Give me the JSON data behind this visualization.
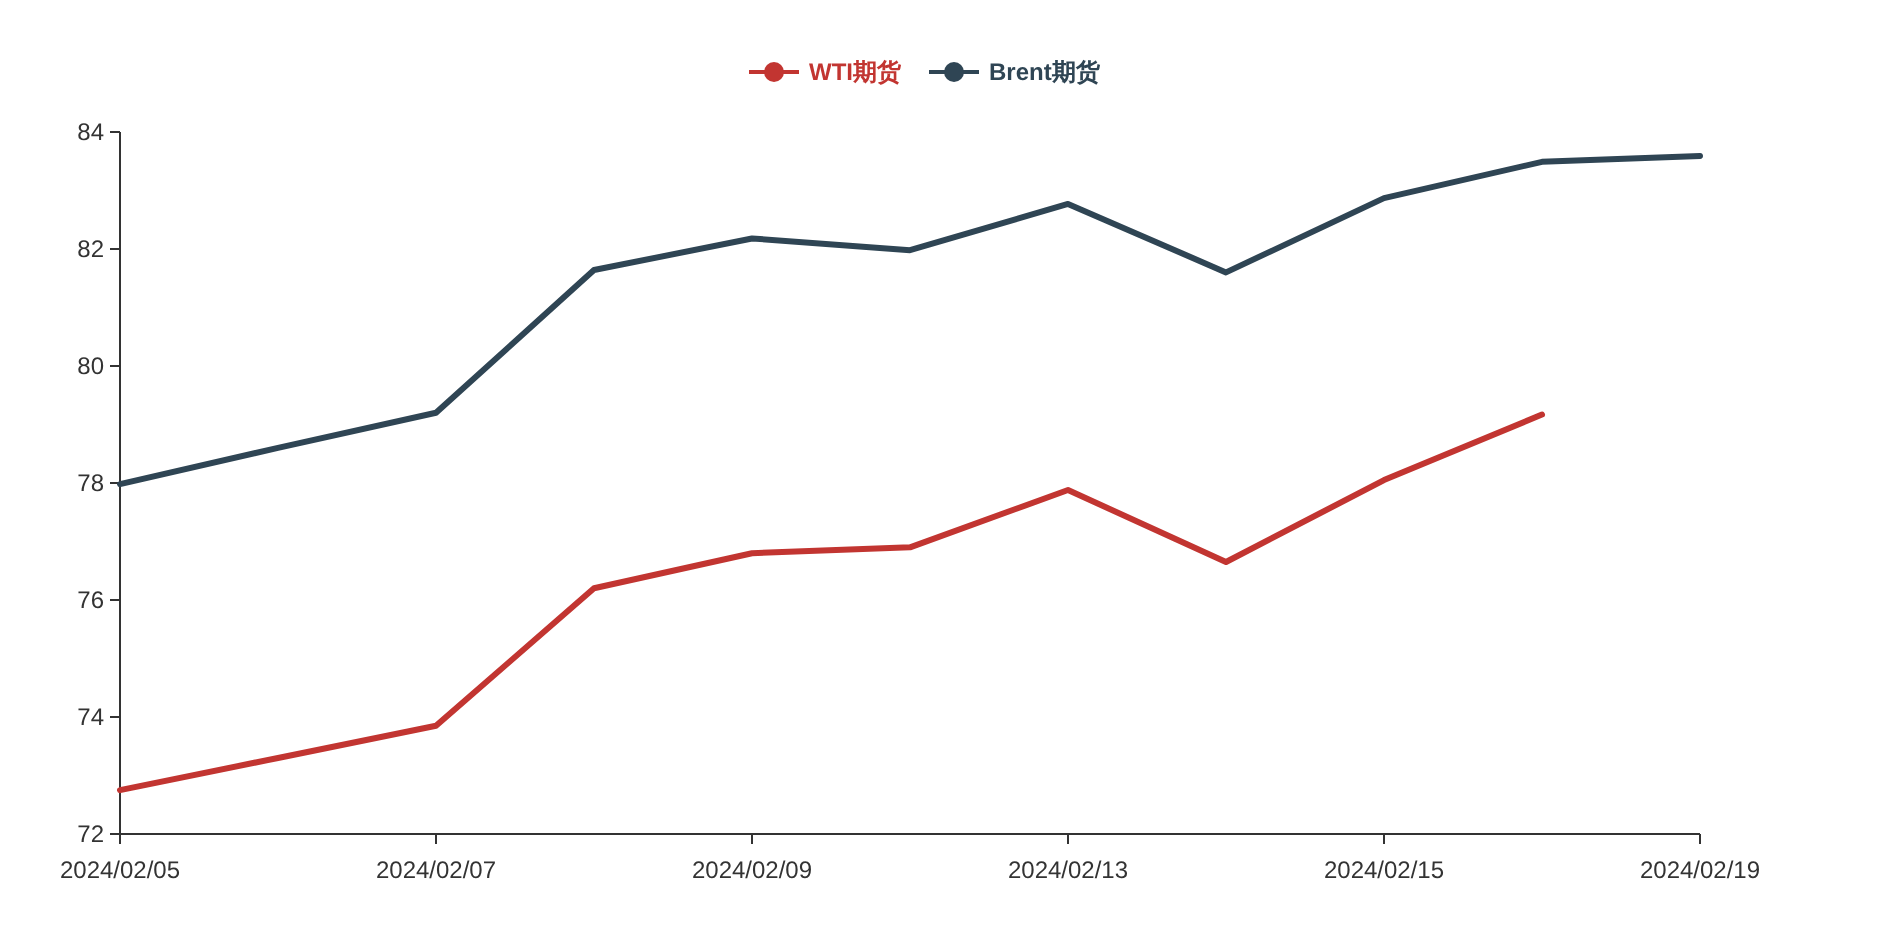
{
  "chart_data": {
    "type": "line",
    "categories": [
      "2024/02/05",
      null,
      "2024/02/07",
      null,
      "2024/02/09",
      null,
      "2024/02/13",
      null,
      "2024/02/15",
      null,
      "2024/02/19"
    ],
    "series": [
      {
        "name": "WTI期货",
        "color": "#c23531",
        "values": [
          72.75,
          73.3,
          73.85,
          76.2,
          76.8,
          76.9,
          77.88,
          76.65,
          78.05,
          79.17,
          null
        ]
      },
      {
        "name": "Brent期货",
        "color": "#2f4554",
        "values": [
          77.98,
          78.6,
          79.2,
          81.64,
          82.18,
          81.98,
          82.77,
          81.6,
          82.87,
          83.49,
          83.59
        ]
      }
    ],
    "ylim": [
      72,
      84
    ],
    "yticks": [
      72,
      74,
      76,
      78,
      80,
      82,
      84
    ],
    "legend": "top",
    "grid": false,
    "marker": "none",
    "line_style": "solid"
  }
}
